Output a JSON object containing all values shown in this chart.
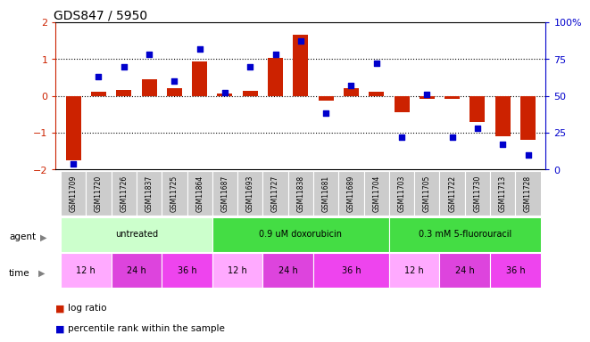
{
  "title": "GDS847 / 5950",
  "samples": [
    "GSM11709",
    "GSM11720",
    "GSM11726",
    "GSM11837",
    "GSM11725",
    "GSM11864",
    "GSM11687",
    "GSM11693",
    "GSM11727",
    "GSM11838",
    "GSM11681",
    "GSM11689",
    "GSM11704",
    "GSM11703",
    "GSM11705",
    "GSM11722",
    "GSM11730",
    "GSM11713",
    "GSM11728"
  ],
  "log_ratio": [
    -1.75,
    0.12,
    0.17,
    0.45,
    0.22,
    0.93,
    0.07,
    0.14,
    1.02,
    1.65,
    -0.14,
    0.22,
    0.12,
    -0.45,
    -0.07,
    -0.09,
    -0.7,
    -1.1,
    -1.2
  ],
  "percentile": [
    4,
    63,
    70,
    78,
    60,
    82,
    52,
    70,
    78,
    87,
    38,
    57,
    72,
    22,
    51,
    22,
    28,
    17,
    10
  ],
  "bar_color": "#cc2200",
  "dot_color": "#0000cc",
  "ylim_left": [
    -2.0,
    2.0
  ],
  "ylim_right": [
    0,
    100
  ],
  "yticks_left": [
    -2,
    -1,
    0,
    1,
    2
  ],
  "yticks_right": [
    0,
    25,
    50,
    75,
    100
  ],
  "ytick_labels_right": [
    "0",
    "25",
    "50",
    "75",
    "100%"
  ],
  "hlines": [
    -1.0,
    0.0,
    1.0
  ],
  "legend_bar_label": "log ratio",
  "legend_dot_label": "percentile rank within the sample",
  "agent_groups": [
    {
      "label": "untreated",
      "start": 0,
      "end": 5,
      "color": "#ccffcc"
    },
    {
      "label": "0.9 uM doxorubicin",
      "start": 6,
      "end": 12,
      "color": "#44dd44"
    },
    {
      "label": "0.3 mM 5-fluorouracil",
      "start": 13,
      "end": 18,
      "color": "#44dd44"
    }
  ],
  "time_groups": [
    {
      "label": "12 h",
      "start": 0,
      "end": 1,
      "color": "#ffaaff"
    },
    {
      "label": "24 h",
      "start": 2,
      "end": 3,
      "color": "#dd44dd"
    },
    {
      "label": "36 h",
      "start": 4,
      "end": 5,
      "color": "#ee44ee"
    },
    {
      "label": "12 h",
      "start": 6,
      "end": 7,
      "color": "#ffaaff"
    },
    {
      "label": "24 h",
      "start": 8,
      "end": 9,
      "color": "#dd44dd"
    },
    {
      "label": "36 h",
      "start": 10,
      "end": 12,
      "color": "#ee44ee"
    },
    {
      "label": "12 h",
      "start": 13,
      "end": 14,
      "color": "#ffaaff"
    },
    {
      "label": "24 h",
      "start": 15,
      "end": 16,
      "color": "#dd44dd"
    },
    {
      "label": "36 h",
      "start": 17,
      "end": 18,
      "color": "#ee44ee"
    }
  ]
}
